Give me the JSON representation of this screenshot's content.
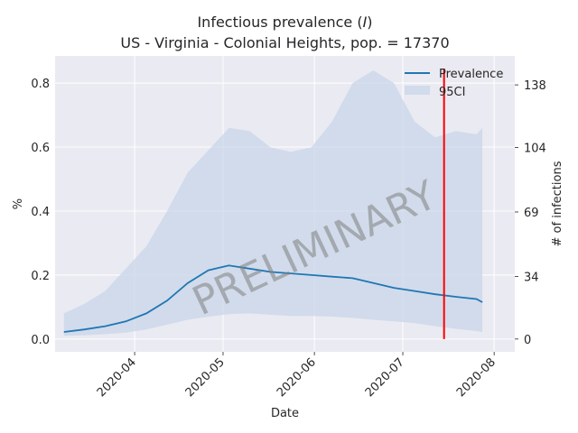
{
  "chart_data": {
    "type": "area",
    "title_line1": "Infectious prevalence (",
    "title_italic": "I",
    "title_line1_end": ")",
    "title_line2": "US - Virginia - Colonial Heights, pop. = 17370",
    "xlabel": "Date",
    "ylabel": "%",
    "ylabel_right": "# of infections",
    "watermark": "PRELIMINARY",
    "x_range": [
      "2020-03-05",
      "2020-08-08"
    ],
    "ylim": [
      -0.04,
      0.885
    ],
    "y_ticks": [
      "0.0",
      "0.2",
      "0.4",
      "0.6",
      "0.8"
    ],
    "y_tick_values": [
      0.0,
      0.2,
      0.4,
      0.6,
      0.8
    ],
    "y2_ticks": [
      "0",
      "34",
      "69",
      "104",
      "138"
    ],
    "y2_tick_values": [
      0.0,
      0.1957,
      0.3972,
      0.5987,
      0.7945
    ],
    "x_ticks": [
      "2020-04",
      "2020-05",
      "2020-06",
      "2020-07",
      "2020-08"
    ],
    "x_tick_dates": [
      "2020-04-01",
      "2020-05-01",
      "2020-06-01",
      "2020-07-01",
      "2020-08-01"
    ],
    "grid": true,
    "legend_position": "top-right",
    "legend": [
      "Prevalence",
      "95CI"
    ],
    "vline_date": "2020-07-15",
    "vline_color": "#ff0000",
    "line_color": "#1f77b4",
    "band_color": "#c8d6e8",
    "series": [
      {
        "name": "Prevalence",
        "x": [
          "2020-03-08",
          "2020-03-15",
          "2020-03-22",
          "2020-03-29",
          "2020-04-05",
          "2020-04-12",
          "2020-04-19",
          "2020-04-26",
          "2020-05-03",
          "2020-05-10",
          "2020-05-17",
          "2020-05-24",
          "2020-05-31",
          "2020-06-07",
          "2020-06-14",
          "2020-06-21",
          "2020-06-28",
          "2020-07-05",
          "2020-07-12",
          "2020-07-19",
          "2020-07-26",
          "2020-07-28"
        ],
        "values": [
          0.022,
          0.03,
          0.04,
          0.055,
          0.08,
          0.12,
          0.175,
          0.215,
          0.23,
          0.22,
          0.21,
          0.205,
          0.2,
          0.195,
          0.19,
          0.175,
          0.16,
          0.15,
          0.14,
          0.132,
          0.125,
          0.115
        ]
      },
      {
        "name": "95CI",
        "x": [
          "2020-03-08",
          "2020-03-15",
          "2020-03-22",
          "2020-03-29",
          "2020-04-05",
          "2020-04-12",
          "2020-04-19",
          "2020-04-26",
          "2020-05-03",
          "2020-05-10",
          "2020-05-17",
          "2020-05-24",
          "2020-05-31",
          "2020-06-07",
          "2020-06-14",
          "2020-06-21",
          "2020-06-28",
          "2020-07-05",
          "2020-07-12",
          "2020-07-19",
          "2020-07-26",
          "2020-07-28"
        ],
        "lower": [
          0.01,
          0.012,
          0.015,
          0.02,
          0.03,
          0.045,
          0.06,
          0.07,
          0.078,
          0.08,
          0.076,
          0.072,
          0.072,
          0.07,
          0.066,
          0.06,
          0.055,
          0.05,
          0.04,
          0.032,
          0.025,
          0.022
        ],
        "upper": [
          0.08,
          0.11,
          0.15,
          0.22,
          0.29,
          0.4,
          0.52,
          0.59,
          0.66,
          0.65,
          0.6,
          0.585,
          0.6,
          0.68,
          0.8,
          0.84,
          0.8,
          0.68,
          0.63,
          0.65,
          0.64,
          0.66
        ]
      }
    ]
  }
}
